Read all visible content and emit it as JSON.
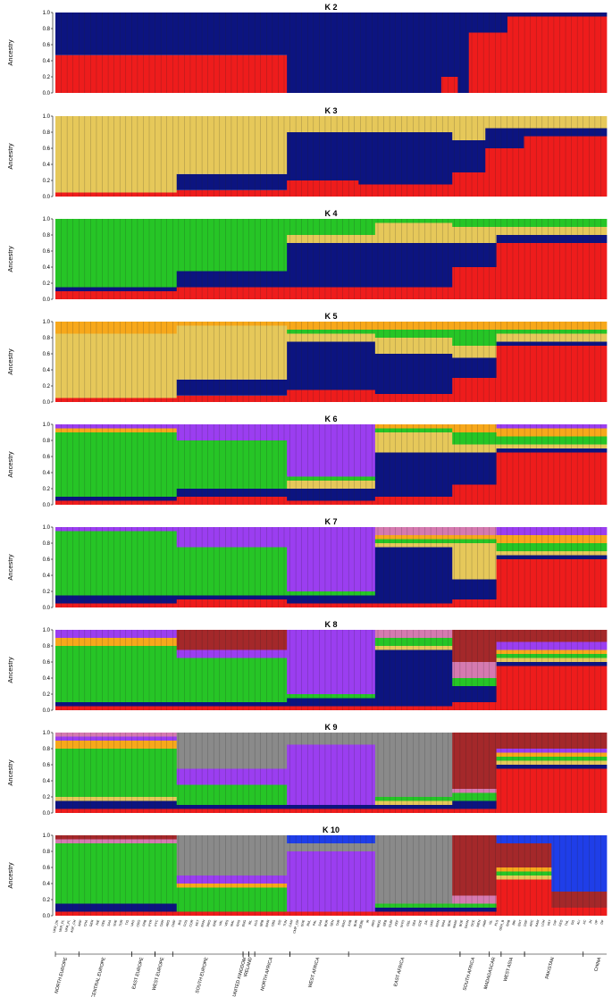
{
  "chart_data": {
    "type": "bar",
    "stacked": true,
    "normalized": true,
    "ylabel": "Ancestry",
    "ylim": [
      0,
      1
    ],
    "yticks": [
      "0.0",
      "0.2",
      "0.4",
      "0.6",
      "0.8",
      "1.0"
    ],
    "component_colors": {
      "red": "#ee1c1c",
      "navy": "#0c1480",
      "gold": "#e6c85a",
      "green": "#26c526",
      "orange": "#f7a81b",
      "purple": "#9b3ef0",
      "pink": "#d57ab0",
      "brown": "#a4282a",
      "grey": "#8a8a8a",
      "blue": "#1f3ee8"
    },
    "populations": [
      "UKR_DK",
      "UKR_PL",
      "UKR_FL",
      "AGF_CH",
      "ARP",
      "CHA",
      "GER",
      "NIE",
      "PEK",
      "SAA",
      "SUE",
      "TOR",
      "TIG",
      "VAO",
      "CRO",
      "FRB",
      "PYR",
      "PYC",
      "CRH",
      "ARG",
      "CMP",
      "BIS",
      "COS",
      "COR",
      "MLT",
      "MAN",
      "PRO",
      "ERE",
      "VAL",
      "VES",
      "MAL",
      "RAS",
      "ENG",
      "IRL",
      "ALG",
      "BRB",
      "MAR",
      "OBS",
      "SID",
      "TUN",
      "CAM",
      "CMP_CM",
      "GUE",
      "BUL",
      "PAL",
      "SAA",
      "BOR",
      "SEN",
      "TAR",
      "MAO",
      "AXB",
      "BUR",
      "DEBE",
      "IR",
      "ARO",
      "MOG",
      "BEB",
      "GUM",
      "KEF",
      "WYO",
      "GEL",
      "SEA",
      "GZE",
      "ZAI",
      "LMO",
      "MAN",
      "MAA",
      "BUK",
      "MAMI",
      "BOE",
      "SAAN",
      "OCE",
      "MEN",
      "ARM",
      "ISL",
      "KLS",
      "GRA_B",
      "BAB",
      "BRI",
      "BUT",
      "DSP",
      "ARC",
      "KAM",
      "LOH",
      "PAT",
      "TAP",
      "FED",
      "THL",
      "GG",
      "ALI",
      "AC",
      "JN",
      "UP",
      "DP"
    ],
    "regions": [
      {
        "name": "NORTH EUROPE",
        "pop_start": 0,
        "pop_end": 4
      },
      {
        "name": "CENTRAL EUROPE",
        "pop_start": 4,
        "pop_end": 13
      },
      {
        "name": "EAST EUROPE",
        "pop_start": 13,
        "pop_end": 17
      },
      {
        "name": "WEST EUROPE",
        "pop_start": 17,
        "pop_end": 20
      },
      {
        "name": "SOUTH EUROPE",
        "pop_start": 20,
        "pop_end": 32
      },
      {
        "name": "UNITED KINGDOM",
        "pop_start": 32,
        "pop_end": 33
      },
      {
        "name": "IRELAND",
        "pop_start": 33,
        "pop_end": 34
      },
      {
        "name": "NORTH AFRICA",
        "pop_start": 34,
        "pop_end": 40
      },
      {
        "name": "WEST AFRICA",
        "pop_start": 40,
        "pop_end": 50
      },
      {
        "name": "EAST AFRICA",
        "pop_start": 50,
        "pop_end": 69
      },
      {
        "name": "SOUTH AFRICA",
        "pop_start": 69,
        "pop_end": 74
      },
      {
        "name": "MADAGASCAR",
        "pop_start": 74,
        "pop_end": 76
      },
      {
        "name": "WEST ASIA",
        "pop_start": 76,
        "pop_end": 80
      },
      {
        "name": "PAKISTAN",
        "pop_start": 80,
        "pop_end": 90
      },
      {
        "name": "CHINA",
        "pop_start": 90,
        "pop_end": 96
      }
    ],
    "panels": [
      {
        "title": "K 2",
        "components": [
          "red",
          "navy"
        ],
        "segments": [
          {
            "x0": 0.0,
            "x1": 0.42,
            "mix": [
              0.47,
              0.53
            ]
          },
          {
            "x0": 0.42,
            "x1": 0.52,
            "mix": [
              0.0,
              1.0
            ]
          },
          {
            "x0": 0.52,
            "x1": 0.7,
            "mix": [
              0.0,
              1.0
            ]
          },
          {
            "x0": 0.7,
            "x1": 0.73,
            "mix": [
              0.2,
              0.8
            ]
          },
          {
            "x0": 0.73,
            "x1": 0.75,
            "mix": [
              0.0,
              1.0
            ]
          },
          {
            "x0": 0.75,
            "x1": 0.82,
            "mix": [
              0.75,
              0.25
            ]
          },
          {
            "x0": 0.82,
            "x1": 1.0,
            "mix": [
              0.95,
              0.05
            ]
          }
        ]
      },
      {
        "title": "K 3",
        "components": [
          "red",
          "navy",
          "gold"
        ],
        "segments": [
          {
            "x0": 0.0,
            "x1": 0.22,
            "mix": [
              0.05,
              0.0,
              0.95
            ]
          },
          {
            "x0": 0.22,
            "x1": 0.42,
            "mix": [
              0.08,
              0.2,
              0.72
            ]
          },
          {
            "x0": 0.42,
            "x1": 0.55,
            "mix": [
              0.2,
              0.6,
              0.2
            ]
          },
          {
            "x0": 0.55,
            "x1": 0.72,
            "mix": [
              0.15,
              0.65,
              0.2
            ]
          },
          {
            "x0": 0.72,
            "x1": 0.78,
            "mix": [
              0.3,
              0.4,
              0.3
            ]
          },
          {
            "x0": 0.78,
            "x1": 0.85,
            "mix": [
              0.6,
              0.25,
              0.15
            ]
          },
          {
            "x0": 0.85,
            "x1": 1.0,
            "mix": [
              0.75,
              0.1,
              0.15
            ]
          }
        ]
      },
      {
        "title": "K 4",
        "components": [
          "red",
          "navy",
          "gold",
          "green"
        ],
        "segments": [
          {
            "x0": 0.0,
            "x1": 0.22,
            "mix": [
              0.1,
              0.05,
              0.0,
              0.85
            ]
          },
          {
            "x0": 0.22,
            "x1": 0.42,
            "mix": [
              0.15,
              0.2,
              0.0,
              0.65
            ]
          },
          {
            "x0": 0.42,
            "x1": 0.58,
            "mix": [
              0.15,
              0.55,
              0.1,
              0.2
            ]
          },
          {
            "x0": 0.58,
            "x1": 0.72,
            "mix": [
              0.15,
              0.55,
              0.25,
              0.05
            ]
          },
          {
            "x0": 0.72,
            "x1": 0.8,
            "mix": [
              0.4,
              0.3,
              0.2,
              0.1
            ]
          },
          {
            "x0": 0.8,
            "x1": 1.0,
            "mix": [
              0.7,
              0.1,
              0.1,
              0.1
            ]
          }
        ]
      },
      {
        "title": "K 5",
        "components": [
          "red",
          "navy",
          "gold",
          "green",
          "orange"
        ],
        "segments": [
          {
            "x0": 0.0,
            "x1": 0.22,
            "mix": [
              0.05,
              0.0,
              0.8,
              0.0,
              0.15
            ]
          },
          {
            "x0": 0.22,
            "x1": 0.42,
            "mix": [
              0.08,
              0.2,
              0.67,
              0.0,
              0.05
            ]
          },
          {
            "x0": 0.42,
            "x1": 0.58,
            "mix": [
              0.15,
              0.6,
              0.1,
              0.05,
              0.1
            ]
          },
          {
            "x0": 0.58,
            "x1": 0.72,
            "mix": [
              0.1,
              0.5,
              0.2,
              0.1,
              0.1
            ]
          },
          {
            "x0": 0.72,
            "x1": 0.8,
            "mix": [
              0.3,
              0.25,
              0.15,
              0.2,
              0.1
            ]
          },
          {
            "x0": 0.8,
            "x1": 1.0,
            "mix": [
              0.7,
              0.05,
              0.1,
              0.05,
              0.1
            ]
          }
        ]
      },
      {
        "title": "K 6",
        "components": [
          "red",
          "navy",
          "gold",
          "green",
          "orange",
          "purple"
        ],
        "segments": [
          {
            "x0": 0.0,
            "x1": 0.22,
            "mix": [
              0.05,
              0.05,
              0.0,
              0.8,
              0.05,
              0.05
            ]
          },
          {
            "x0": 0.22,
            "x1": 0.42,
            "mix": [
              0.1,
              0.1,
              0.0,
              0.6,
              0.0,
              0.2
            ]
          },
          {
            "x0": 0.42,
            "x1": 0.58,
            "mix": [
              0.05,
              0.15,
              0.1,
              0.05,
              0.0,
              0.65
            ]
          },
          {
            "x0": 0.58,
            "x1": 0.72,
            "mix": [
              0.1,
              0.55,
              0.25,
              0.05,
              0.05,
              0.0
            ]
          },
          {
            "x0": 0.72,
            "x1": 0.8,
            "mix": [
              0.25,
              0.4,
              0.1,
              0.15,
              0.1,
              0.0
            ]
          },
          {
            "x0": 0.8,
            "x1": 1.0,
            "mix": [
              0.65,
              0.05,
              0.05,
              0.1,
              0.1,
              0.05
            ]
          }
        ]
      },
      {
        "title": "K 7",
        "components": [
          "red",
          "navy",
          "gold",
          "green",
          "orange",
          "purple",
          "pink"
        ],
        "segments": [
          {
            "x0": 0.0,
            "x1": 0.22,
            "mix": [
              0.05,
              0.1,
              0.0,
              0.8,
              0.0,
              0.05,
              0.0
            ]
          },
          {
            "x0": 0.22,
            "x1": 0.42,
            "mix": [
              0.1,
              0.05,
              0.0,
              0.6,
              0.0,
              0.25,
              0.0
            ]
          },
          {
            "x0": 0.42,
            "x1": 0.58,
            "mix": [
              0.05,
              0.1,
              0.0,
              0.05,
              0.0,
              0.8,
              0.0
            ]
          },
          {
            "x0": 0.58,
            "x1": 0.72,
            "mix": [
              0.05,
              0.7,
              0.05,
              0.05,
              0.05,
              0.0,
              0.1
            ]
          },
          {
            "x0": 0.72,
            "x1": 0.8,
            "mix": [
              0.1,
              0.25,
              0.45,
              0.05,
              0.05,
              0.0,
              0.1
            ]
          },
          {
            "x0": 0.8,
            "x1": 1.0,
            "mix": [
              0.6,
              0.05,
              0.05,
              0.1,
              0.1,
              0.1,
              0.0
            ]
          }
        ]
      },
      {
        "title": "K 8",
        "components": [
          "red",
          "navy",
          "gold",
          "green",
          "orange",
          "purple",
          "pink",
          "brown"
        ],
        "segments": [
          {
            "x0": 0.0,
            "x1": 0.22,
            "mix": [
              0.05,
              0.05,
              0.0,
              0.7,
              0.1,
              0.1,
              0.0,
              0.0
            ]
          },
          {
            "x0": 0.22,
            "x1": 0.42,
            "mix": [
              0.05,
              0.05,
              0.0,
              0.55,
              0.0,
              0.1,
              0.0,
              0.25
            ]
          },
          {
            "x0": 0.42,
            "x1": 0.58,
            "mix": [
              0.05,
              0.1,
              0.0,
              0.05,
              0.0,
              0.8,
              0.0,
              0.0
            ]
          },
          {
            "x0": 0.58,
            "x1": 0.72,
            "mix": [
              0.05,
              0.7,
              0.05,
              0.1,
              0.0,
              0.0,
              0.1,
              0.0
            ]
          },
          {
            "x0": 0.72,
            "x1": 0.8,
            "mix": [
              0.1,
              0.2,
              0.0,
              0.1,
              0.0,
              0.0,
              0.2,
              0.4
            ]
          },
          {
            "x0": 0.8,
            "x1": 1.0,
            "mix": [
              0.55,
              0.05,
              0.05,
              0.05,
              0.05,
              0.1,
              0.0,
              0.15
            ]
          }
        ]
      },
      {
        "title": "K 9",
        "components": [
          "red",
          "navy",
          "gold",
          "green",
          "orange",
          "purple",
          "pink",
          "brown",
          "grey"
        ],
        "segments": [
          {
            "x0": 0.0,
            "x1": 0.22,
            "mix": [
              0.05,
              0.1,
              0.05,
              0.6,
              0.1,
              0.05,
              0.05,
              0.0,
              0.0
            ]
          },
          {
            "x0": 0.22,
            "x1": 0.42,
            "mix": [
              0.05,
              0.05,
              0.0,
              0.25,
              0.0,
              0.2,
              0.0,
              0.0,
              0.45
            ]
          },
          {
            "x0": 0.42,
            "x1": 0.58,
            "mix": [
              0.05,
              0.05,
              0.0,
              0.0,
              0.0,
              0.75,
              0.0,
              0.0,
              0.15
            ]
          },
          {
            "x0": 0.58,
            "x1": 0.72,
            "mix": [
              0.05,
              0.05,
              0.05,
              0.05,
              0.0,
              0.0,
              0.0,
              0.0,
              0.8
            ]
          },
          {
            "x0": 0.72,
            "x1": 0.8,
            "mix": [
              0.05,
              0.1,
              0.0,
              0.1,
              0.0,
              0.0,
              0.05,
              0.7,
              0.0
            ]
          },
          {
            "x0": 0.8,
            "x1": 1.0,
            "mix": [
              0.55,
              0.05,
              0.05,
              0.05,
              0.05,
              0.05,
              0.0,
              0.2,
              0.0
            ]
          }
        ]
      },
      {
        "title": "K 10",
        "components": [
          "red",
          "navy",
          "gold",
          "green",
          "orange",
          "purple",
          "pink",
          "brown",
          "grey",
          "blue"
        ],
        "segments": [
          {
            "x0": 0.0,
            "x1": 0.22,
            "mix": [
              0.05,
              0.1,
              0.0,
              0.75,
              0.0,
              0.0,
              0.05,
              0.05,
              0.0,
              0.0
            ]
          },
          {
            "x0": 0.22,
            "x1": 0.42,
            "mix": [
              0.05,
              0.0,
              0.0,
              0.3,
              0.05,
              0.1,
              0.0,
              0.0,
              0.5,
              0.0
            ]
          },
          {
            "x0": 0.42,
            "x1": 0.58,
            "mix": [
              0.05,
              0.0,
              0.0,
              0.0,
              0.0,
              0.75,
              0.0,
              0.0,
              0.1,
              0.1
            ]
          },
          {
            "x0": 0.58,
            "x1": 0.72,
            "mix": [
              0.05,
              0.05,
              0.0,
              0.05,
              0.0,
              0.0,
              0.0,
              0.0,
              0.85,
              0.0
            ]
          },
          {
            "x0": 0.72,
            "x1": 0.8,
            "mix": [
              0.05,
              0.05,
              0.0,
              0.05,
              0.0,
              0.0,
              0.1,
              0.75,
              0.0,
              0.0
            ]
          },
          {
            "x0": 0.8,
            "x1": 0.9,
            "mix": [
              0.45,
              0.0,
              0.05,
              0.05,
              0.05,
              0.0,
              0.0,
              0.3,
              0.0,
              0.1
            ]
          },
          {
            "x0": 0.9,
            "x1": 1.0,
            "mix": [
              0.1,
              0.0,
              0.0,
              0.0,
              0.0,
              0.0,
              0.0,
              0.2,
              0.0,
              0.7
            ]
          }
        ]
      }
    ]
  }
}
